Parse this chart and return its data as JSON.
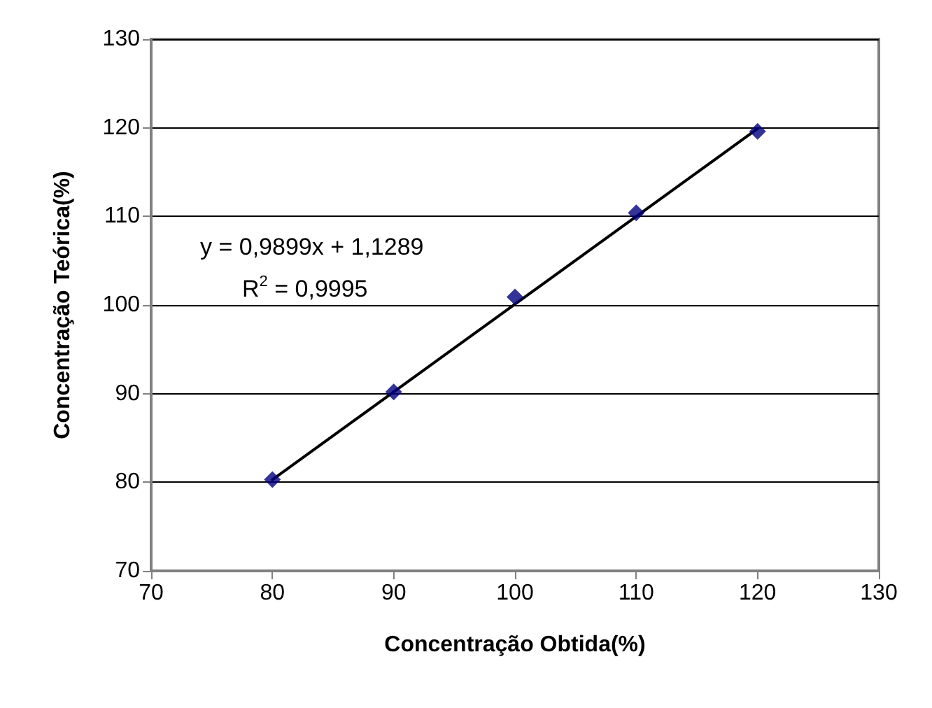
{
  "chart_data": {
    "type": "scatter",
    "xlabel": "Concentração Obtida(%)",
    "ylabel": "Concentração Teórica(%)",
    "x": [
      80,
      90,
      100,
      110,
      120
    ],
    "series": [
      {
        "type": "scatter",
        "color": "#000080",
        "marker": "diamond",
        "values": [
          80.3,
          90.2,
          100.9,
          110.4,
          119.6
        ]
      },
      {
        "type": "line",
        "color": "#000000",
        "x": [
          80,
          120
        ],
        "values": [
          80.3,
          119.9
        ],
        "marker": "none",
        "line_style": "solid"
      }
    ],
    "xlim": [
      70,
      130
    ],
    "xticks": [
      70,
      80,
      90,
      100,
      110,
      120,
      130
    ],
    "ylim": [
      70,
      130
    ],
    "yticks": [
      70,
      80,
      90,
      100,
      110,
      120,
      130
    ],
    "grid": "y",
    "annotations": [
      "y = 0,9899x + 1,1289",
      "R$^{2}$ = 0,9995"
    ]
  }
}
